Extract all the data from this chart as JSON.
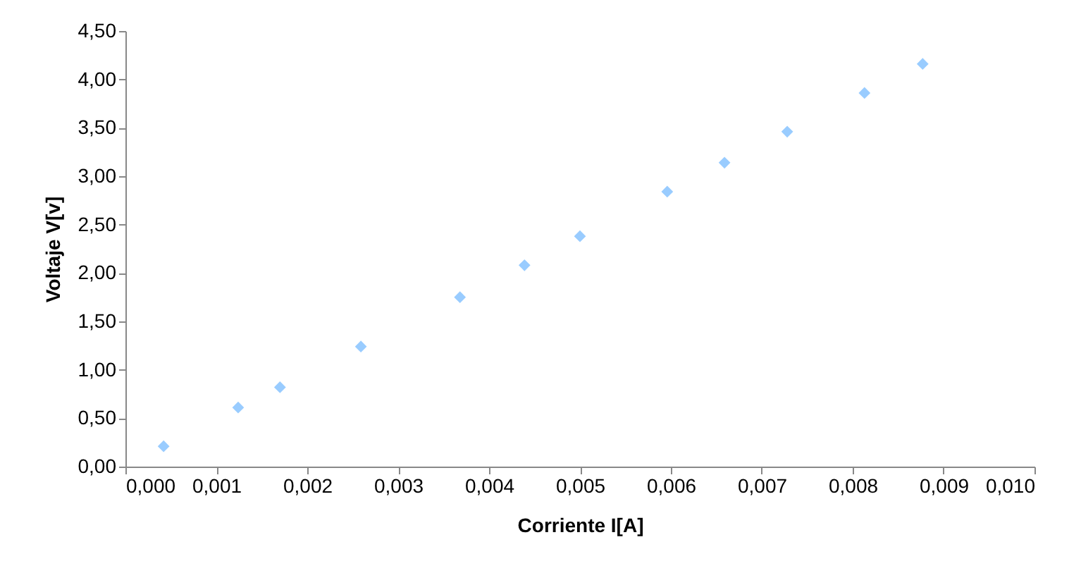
{
  "chart_data": {
    "type": "scatter",
    "xlabel": "Corriente I[A]",
    "ylabel": "Voltaje V[v]",
    "x": [
      0.00042,
      0.00124,
      0.0017,
      0.00259,
      0.00368,
      0.00439,
      0.005,
      0.00596,
      0.00659,
      0.00728,
      0.00813,
      0.00877
    ],
    "series": [
      {
        "color": "#99ccff",
        "values": [
          0.21,
          0.61,
          0.82,
          1.24,
          1.75,
          2.08,
          2.38,
          2.84,
          3.14,
          3.46,
          3.86,
          4.16
        ]
      }
    ],
    "marker": "diamond",
    "grid": false,
    "xlim": [
      0,
      0.01
    ],
    "ylim": [
      0,
      4.5
    ],
    "xticks": [
      {
        "value": 0,
        "label": "0,000"
      },
      {
        "value": 0.001,
        "label": "0,001"
      },
      {
        "value": 0.002,
        "label": "0,002"
      },
      {
        "value": 0.003,
        "label": "0,003"
      },
      {
        "value": 0.004,
        "label": "0,004"
      },
      {
        "value": 0.005,
        "label": "0,005"
      },
      {
        "value": 0.006,
        "label": "0,006"
      },
      {
        "value": 0.007,
        "label": "0,007"
      },
      {
        "value": 0.008,
        "label": "0,008"
      },
      {
        "value": 0.009,
        "label": "0,009"
      },
      {
        "value": 0.01,
        "label": "0,010"
      }
    ],
    "yticks": [
      {
        "value": 0,
        "label": "0,00"
      },
      {
        "value": 0.5,
        "label": "0,50"
      },
      {
        "value": 1,
        "label": "1,00"
      },
      {
        "value": 1.5,
        "label": "1,50"
      },
      {
        "value": 2,
        "label": "2,00"
      },
      {
        "value": 2.5,
        "label": "2,50"
      },
      {
        "value": 3,
        "label": "3,00"
      },
      {
        "value": 3.5,
        "label": "3,50"
      },
      {
        "value": 4,
        "label": "4,00"
      },
      {
        "value": 4.5,
        "label": "4,50"
      }
    ]
  }
}
